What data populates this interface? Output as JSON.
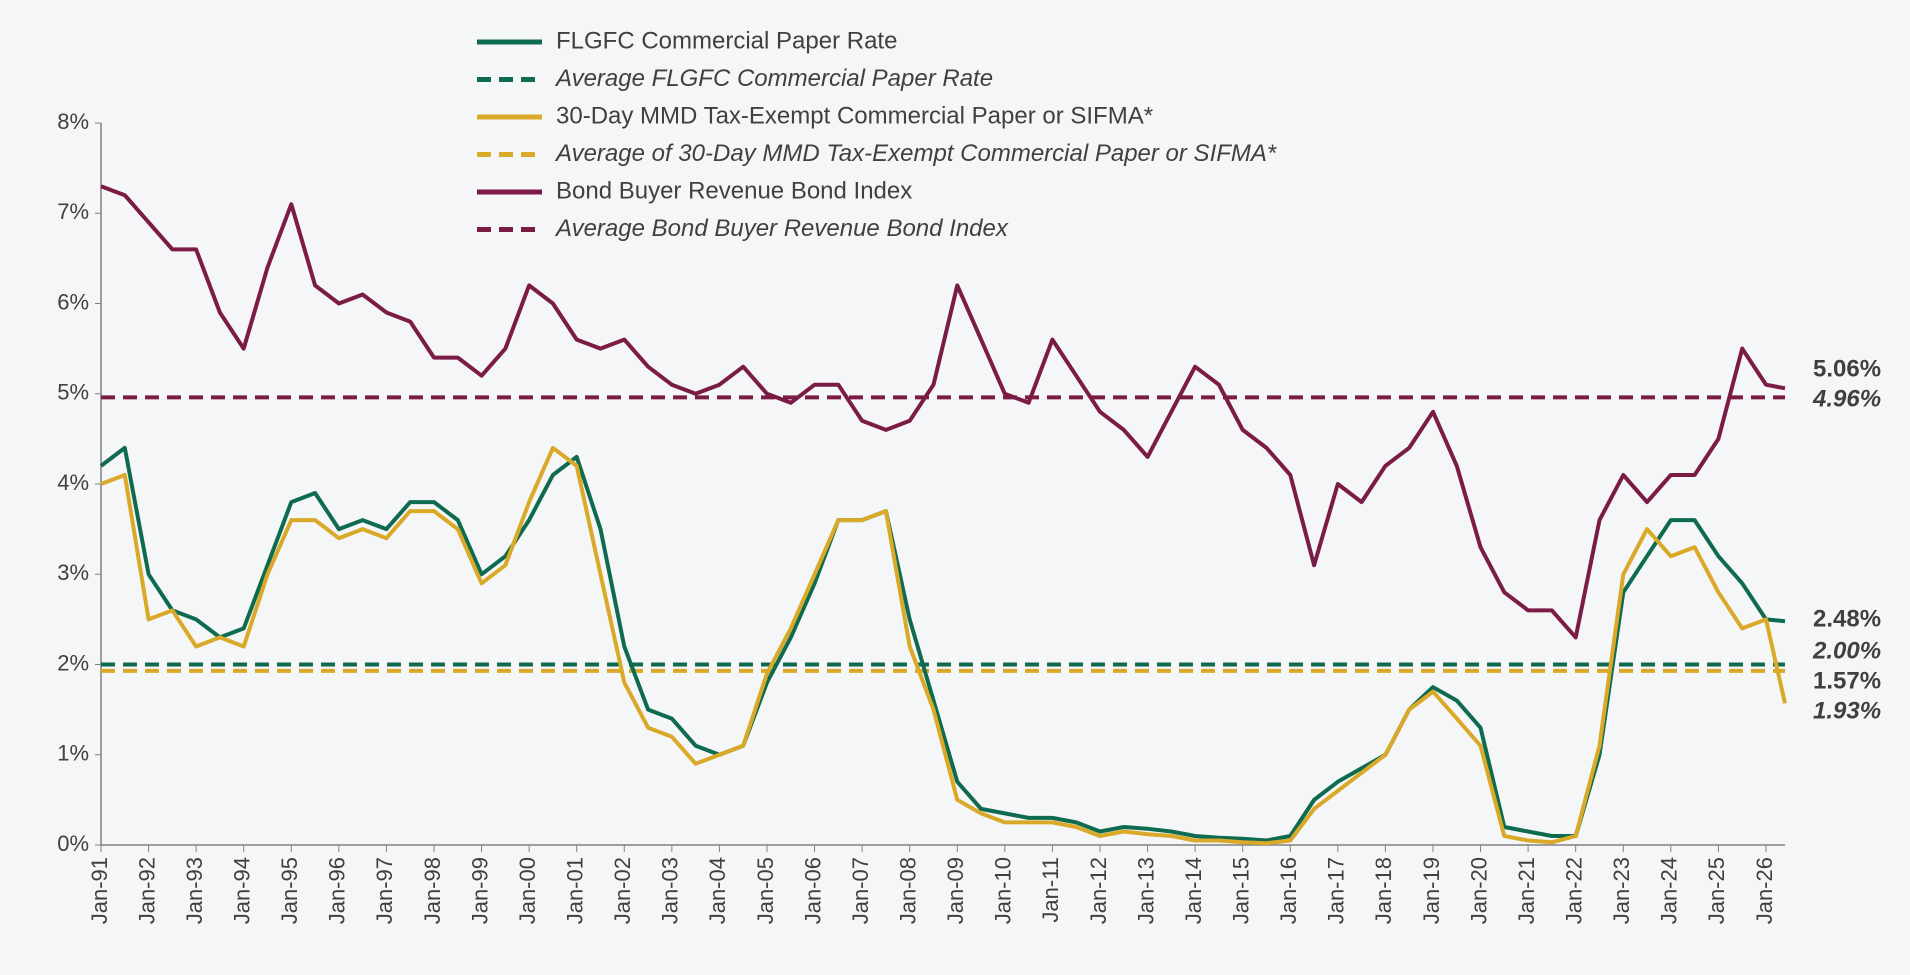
{
  "chart_data": {
    "type": "line",
    "x": [
      1991,
      1991.5,
      1992,
      1992.5,
      1993,
      1993.5,
      1994,
      1994.5,
      1995,
      1995.5,
      1996,
      1996.5,
      1997,
      1997.5,
      1998,
      1998.5,
      1999,
      1999.5,
      2000,
      2000.5,
      2001,
      2001.5,
      2002,
      2002.5,
      2003,
      2003.5,
      2004,
      2004.5,
      2005,
      2005.5,
      2006,
      2006.5,
      2007,
      2007.5,
      2008,
      2008.5,
      2009,
      2009.5,
      2010,
      2010.5,
      2011,
      2011.5,
      2012,
      2012.5,
      2013,
      2013.5,
      2014,
      2014.5,
      2015,
      2015.5,
      2016,
      2016.5,
      2017,
      2017.5,
      2018,
      2018.5,
      2019,
      2019.5,
      2020,
      2020.5,
      2021,
      2021.5,
      2022,
      2022.5,
      2023,
      2023.5,
      2024,
      2024.5,
      2025,
      2025.5,
      2026,
      2026.4
    ],
    "series": [
      {
        "name": "FLGFC Commercial Paper Rate",
        "color": "#0e6b4f",
        "end_label": "2.48%",
        "values": [
          4.2,
          4.4,
          3.0,
          2.6,
          2.5,
          2.3,
          2.4,
          3.1,
          3.8,
          3.9,
          3.5,
          3.6,
          3.5,
          3.8,
          3.8,
          3.6,
          3.0,
          3.2,
          3.6,
          4.1,
          4.3,
          3.5,
          2.2,
          1.5,
          1.4,
          1.1,
          1.0,
          1.1,
          1.8,
          2.3,
          2.9,
          3.6,
          3.6,
          3.7,
          2.5,
          1.6,
          0.7,
          0.4,
          0.35,
          0.3,
          0.3,
          0.25,
          0.15,
          0.2,
          0.18,
          0.15,
          0.1,
          0.08,
          0.07,
          0.05,
          0.1,
          0.5,
          0.7,
          0.85,
          1.0,
          1.5,
          1.75,
          1.6,
          1.3,
          0.2,
          0.15,
          0.1,
          0.1,
          1.0,
          2.8,
          3.2,
          3.6,
          3.6,
          3.2,
          2.9,
          2.5,
          2.48
        ]
      },
      {
        "name": "Average FLGFC Commercial Paper Rate",
        "color": "#0e6b4f",
        "dashed": true,
        "value": 2.0,
        "value_label": "2.00%"
      },
      {
        "name": "30-Day MMD Tax-Exempt Commercial Paper or SIFMA*",
        "color": "#d9a927",
        "end_label": "1.57%",
        "values": [
          4.0,
          4.1,
          2.5,
          2.6,
          2.2,
          2.3,
          2.2,
          3.0,
          3.6,
          3.6,
          3.4,
          3.5,
          3.4,
          3.7,
          3.7,
          3.5,
          2.9,
          3.1,
          3.8,
          4.4,
          4.2,
          3.0,
          1.8,
          1.3,
          1.2,
          0.9,
          1.0,
          1.1,
          1.9,
          2.4,
          3.0,
          3.6,
          3.6,
          3.7,
          2.2,
          1.5,
          0.5,
          0.35,
          0.25,
          0.25,
          0.25,
          0.2,
          0.1,
          0.15,
          0.12,
          0.1,
          0.05,
          0.05,
          0.03,
          0.02,
          0.05,
          0.4,
          0.6,
          0.8,
          1.0,
          1.5,
          1.7,
          1.4,
          1.1,
          0.1,
          0.05,
          0.03,
          0.1,
          1.1,
          3.0,
          3.5,
          3.2,
          3.3,
          2.8,
          2.4,
          2.5,
          1.57
        ]
      },
      {
        "name": "Average of 30-Day MMD Tax-Exempt Commercial Paper or SIFMA*",
        "color": "#d9a927",
        "dashed": true,
        "value": 1.93,
        "value_label": "1.93%"
      },
      {
        "name": "Bond Buyer Revenue Bond Index",
        "color": "#7b1c47",
        "end_label": "5.06%",
        "values": [
          7.3,
          7.2,
          6.9,
          6.6,
          6.6,
          5.9,
          5.5,
          6.4,
          7.1,
          6.2,
          6.0,
          6.1,
          5.9,
          5.8,
          5.4,
          5.4,
          5.2,
          5.5,
          6.2,
          6.0,
          5.6,
          5.5,
          5.6,
          5.3,
          5.1,
          5.0,
          5.1,
          5.3,
          5.0,
          4.9,
          5.1,
          5.1,
          4.7,
          4.6,
          4.7,
          5.1,
          6.2,
          5.6,
          5.0,
          4.9,
          5.6,
          5.2,
          4.8,
          4.6,
          4.3,
          4.8,
          5.3,
          5.1,
          4.6,
          4.4,
          4.1,
          3.1,
          4.0,
          3.8,
          4.2,
          4.4,
          4.8,
          4.2,
          3.3,
          2.8,
          2.6,
          2.6,
          2.3,
          3.6,
          4.1,
          3.8,
          4.1,
          4.1,
          4.5,
          5.5,
          5.1,
          5.06
        ]
      },
      {
        "name": "Average Bond Buyer Revenue Bond Index",
        "color": "#7b1c47",
        "dashed": true,
        "value": 4.96,
        "value_label": "4.96%"
      }
    ],
    "xlim": [
      1991,
      2026.4
    ],
    "ylim": [
      0,
      8
    ],
    "yticks": [
      {
        "value": 0,
        "label": "0%"
      },
      {
        "value": 1,
        "label": "1%"
      },
      {
        "value": 2,
        "label": "2%"
      },
      {
        "value": 3,
        "label": "3%"
      },
      {
        "value": 4,
        "label": "4%"
      },
      {
        "value": 5,
        "label": "5%"
      },
      {
        "value": 6,
        "label": "6%"
      },
      {
        "value": 7,
        "label": "7%"
      },
      {
        "value": 8,
        "label": "8%"
      }
    ],
    "xticks": [
      {
        "value": 1991,
        "label": "Jan-91"
      },
      {
        "value": 1992,
        "label": "Jan-92"
      },
      {
        "value": 1993,
        "label": "Jan-93"
      },
      {
        "value": 1994,
        "label": "Jan-94"
      },
      {
        "value": 1995,
        "label": "Jan-95"
      },
      {
        "value": 1996,
        "label": "Jan-96"
      },
      {
        "value": 1997,
        "label": "Jan-97"
      },
      {
        "value": 1998,
        "label": "Jan-98"
      },
      {
        "value": 1999,
        "label": "Jan-99"
      },
      {
        "value": 2000,
        "label": "Jan-00"
      },
      {
        "value": 2001,
        "label": "Jan-01"
      },
      {
        "value": 2002,
        "label": "Jan-02"
      },
      {
        "value": 2003,
        "label": "Jan-03"
      },
      {
        "value": 2004,
        "label": "Jan-04"
      },
      {
        "value": 2005,
        "label": "Jan-05"
      },
      {
        "value": 2006,
        "label": "Jan-06"
      },
      {
        "value": 2007,
        "label": "Jan-07"
      },
      {
        "value": 2008,
        "label": "Jan-08"
      },
      {
        "value": 2009,
        "label": "Jan-09"
      },
      {
        "value": 2010,
        "label": "Jan-10"
      },
      {
        "value": 2011,
        "label": "Jan-11"
      },
      {
        "value": 2012,
        "label": "Jan-12"
      },
      {
        "value": 2013,
        "label": "Jan-13"
      },
      {
        "value": 2014,
        "label": "Jan-14"
      },
      {
        "value": 2015,
        "label": "Jan-15"
      },
      {
        "value": 2016,
        "label": "Jan-16"
      },
      {
        "value": 2017,
        "label": "Jan-17"
      },
      {
        "value": 2018,
        "label": "Jan-18"
      },
      {
        "value": 2019,
        "label": "Jan-19"
      },
      {
        "value": 2020,
        "label": "Jan-20"
      },
      {
        "value": 2021,
        "label": "Jan-21"
      },
      {
        "value": 2022,
        "label": "Jan-22"
      },
      {
        "value": 2023,
        "label": "Jan-23"
      },
      {
        "value": 2024,
        "label": "Jan-24"
      },
      {
        "value": 2025,
        "label": "Jan-25"
      },
      {
        "value": 2026,
        "label": "Jan-26"
      }
    ],
    "grid": false,
    "legend": "top"
  }
}
